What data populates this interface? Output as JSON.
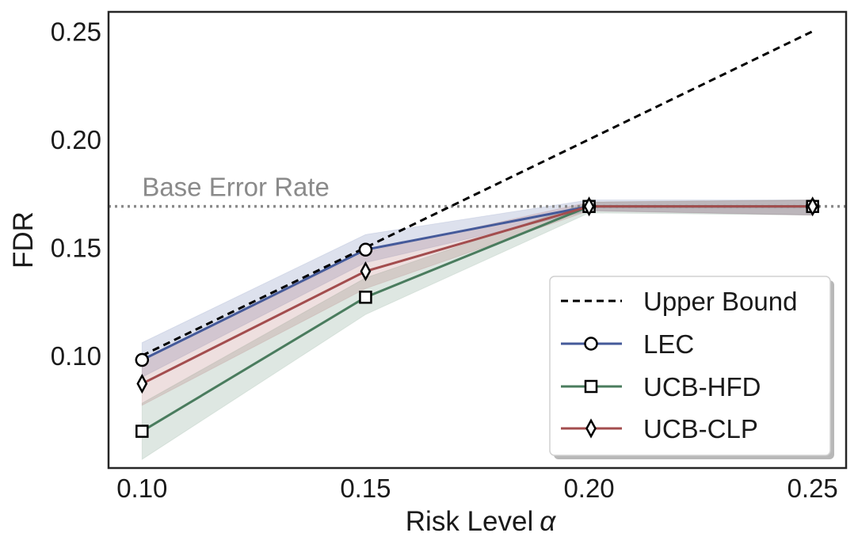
{
  "chart_data": {
    "type": "line",
    "title": "",
    "xlabel": "Risk Level",
    "xlabel_symbol": "α",
    "ylabel": "FDR",
    "x": [
      0.1,
      0.15,
      0.2,
      0.25
    ],
    "xlim": [
      0.0925,
      0.2575
    ],
    "ylim": [
      0.048,
      0.259
    ],
    "xticks": [
      "0.10",
      "0.15",
      "0.20",
      "0.25"
    ],
    "yticks": [
      "0.10",
      "0.15",
      "0.20",
      "0.25"
    ],
    "xtick_values": [
      0.1,
      0.15,
      0.2,
      0.25
    ],
    "ytick_values": [
      0.1,
      0.15,
      0.2,
      0.25
    ],
    "grid": false,
    "legend_position": "lower-right",
    "base_error_rate": {
      "label": "Base Error Rate",
      "value": 0.169,
      "color": "#8a8a8a"
    },
    "series": [
      {
        "name": "Upper Bound",
        "values": [
          0.1,
          0.15,
          0.2,
          0.25
        ],
        "color": "#000000",
        "marker": "none",
        "dash": true
      },
      {
        "name": "LEC",
        "values": [
          0.098,
          0.149,
          0.169,
          0.169
        ],
        "lower": [
          0.09,
          0.143,
          0.167,
          0.165
        ],
        "upper": [
          0.106,
          0.156,
          0.172,
          0.172
        ],
        "color": "#455a9a",
        "marker": "circle"
      },
      {
        "name": "UCB-HFD",
        "values": [
          0.065,
          0.127,
          0.169,
          0.169
        ],
        "lower": [
          0.052,
          0.119,
          0.166,
          0.165
        ],
        "upper": [
          0.078,
          0.136,
          0.171,
          0.172
        ],
        "color": "#4a7c5e",
        "marker": "square"
      },
      {
        "name": "UCB-CLP",
        "values": [
          0.087,
          0.139,
          0.169,
          0.169
        ],
        "lower": [
          0.077,
          0.131,
          0.167,
          0.165
        ],
        "upper": [
          0.098,
          0.148,
          0.171,
          0.172
        ],
        "color": "#a34d4e",
        "marker": "diamond"
      }
    ]
  }
}
